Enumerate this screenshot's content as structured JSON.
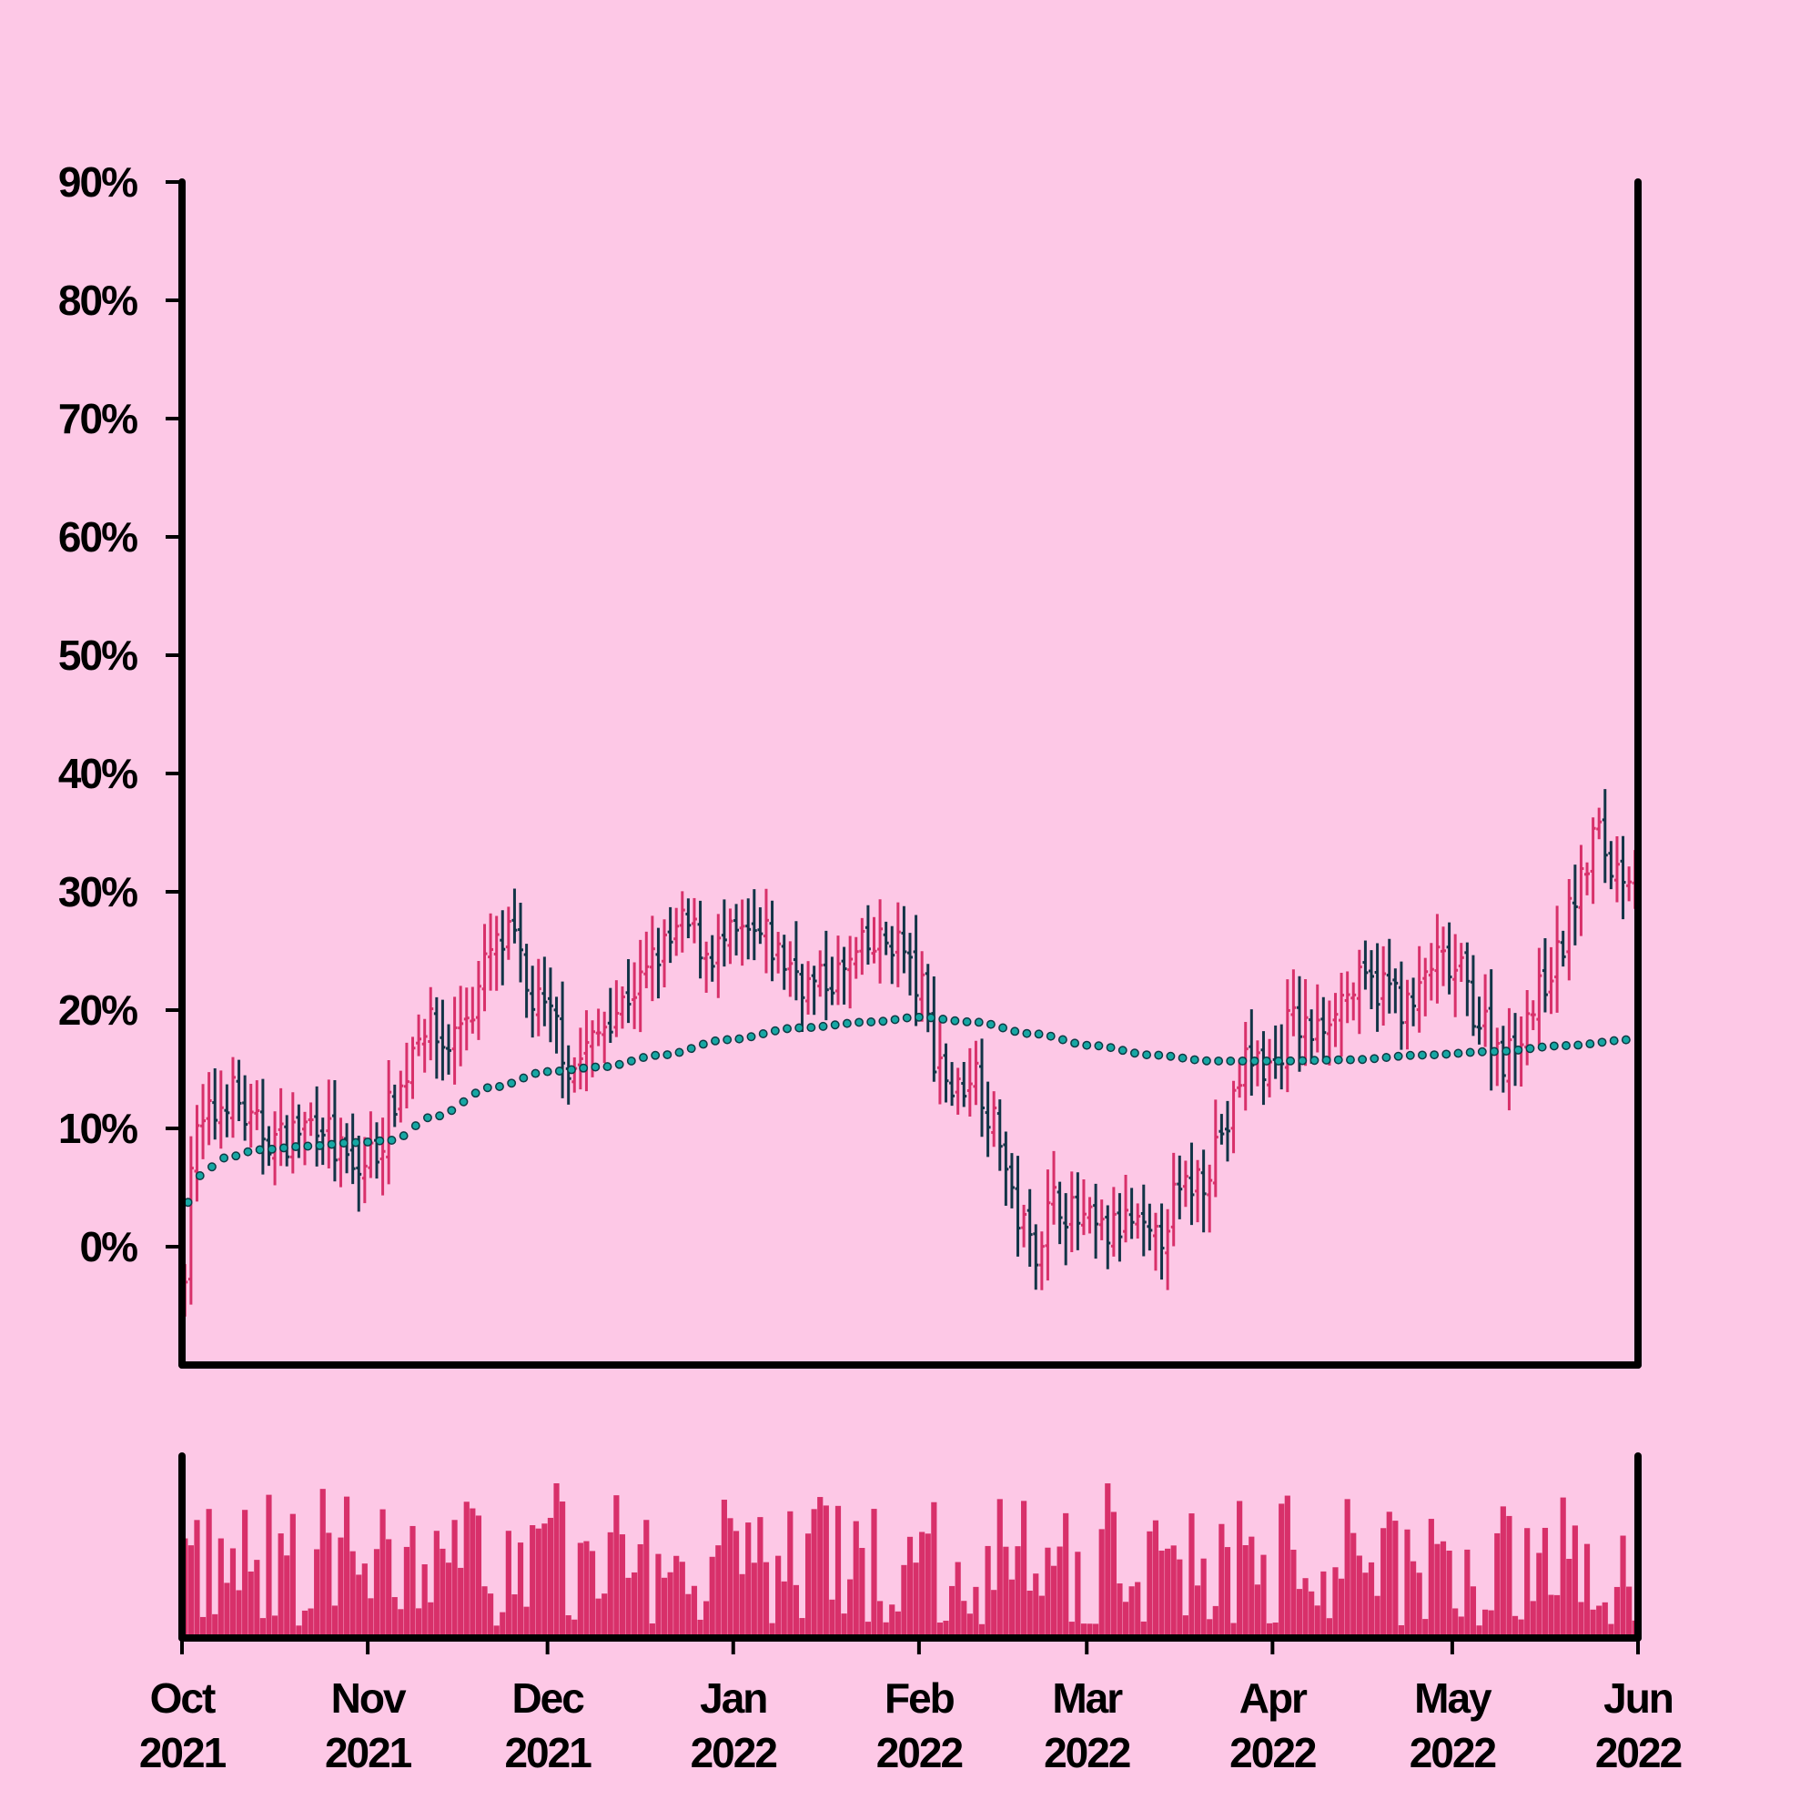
{
  "chart_data": {
    "type": "ohlc",
    "title": "",
    "xlabel": "",
    "ylabel": "",
    "colors": {
      "background": "#fdc8e6",
      "up": "#d8306a",
      "down": "#123447",
      "moving_average": "#17a7a4",
      "volume": "#d8306a",
      "axis": "#000000"
    },
    "price_panel": {
      "ylim": [
        -0.1,
        0.9
      ],
      "yticks": [
        0.0,
        0.1,
        0.2,
        0.3,
        0.4,
        0.5,
        0.6,
        0.7,
        0.8,
        0.9
      ],
      "ytick_labels": [
        "0%",
        "10%",
        "20%",
        "30%",
        "40%",
        "50%",
        "60%",
        "70%",
        "80%",
        "90%"
      ]
    },
    "x_axis": {
      "range": [
        "2021-10-01",
        "2022-06-01"
      ],
      "ticks": [
        {
          "date": "2021-10-01",
          "month": "Oct",
          "year": "2021"
        },
        {
          "date": "2021-11-01",
          "month": "Nov",
          "year": "2021"
        },
        {
          "date": "2021-12-01",
          "month": "Dec",
          "year": "2021"
        },
        {
          "date": "2022-01-01",
          "month": "Jan",
          "year": "2022"
        },
        {
          "date": "2022-02-01",
          "month": "Feb",
          "year": "2022"
        },
        {
          "date": "2022-03-01",
          "month": "Mar",
          "year": "2022"
        },
        {
          "date": "2022-04-01",
          "month": "Apr",
          "year": "2022"
        },
        {
          "date": "2022-05-01",
          "month": "May",
          "year": "2022"
        },
        {
          "date": "2022-06-01",
          "month": "Jun",
          "year": "2022"
        }
      ]
    },
    "close_anchors": [
      [
        "2021-10-01",
        -0.03
      ],
      [
        "2021-10-03",
        0.09
      ],
      [
        "2021-10-06",
        0.11
      ],
      [
        "2021-10-09",
        0.13
      ],
      [
        "2021-10-13",
        0.1
      ],
      [
        "2021-10-17",
        0.09
      ],
      [
        "2021-10-21",
        0.1
      ],
      [
        "2021-10-24",
        0.11
      ],
      [
        "2021-10-27",
        0.08
      ],
      [
        "2021-10-30",
        0.06
      ],
      [
        "2021-11-02",
        0.08
      ],
      [
        "2021-11-06",
        0.13
      ],
      [
        "2021-11-10",
        0.19
      ],
      [
        "2021-11-14",
        0.17
      ],
      [
        "2021-11-18",
        0.2
      ],
      [
        "2021-11-22",
        0.25
      ],
      [
        "2021-11-25",
        0.26
      ],
      [
        "2021-11-28",
        0.21
      ],
      [
        "2021-12-02",
        0.19
      ],
      [
        "2021-12-05",
        0.15
      ],
      [
        "2021-12-08",
        0.17
      ],
      [
        "2021-12-12",
        0.2
      ],
      [
        "2021-12-16",
        0.22
      ],
      [
        "2021-12-20",
        0.25
      ],
      [
        "2021-12-24",
        0.27
      ],
      [
        "2021-12-28",
        0.25
      ],
      [
        "2022-01-02",
        0.26
      ],
      [
        "2022-01-06",
        0.26
      ],
      [
        "2022-01-10",
        0.24
      ],
      [
        "2022-01-14",
        0.22
      ],
      [
        "2022-01-19",
        0.23
      ],
      [
        "2022-01-23",
        0.25
      ],
      [
        "2022-01-28",
        0.26
      ],
      [
        "2022-02-01",
        0.22
      ],
      [
        "2022-02-04",
        0.16
      ],
      [
        "2022-02-07",
        0.13
      ],
      [
        "2022-02-10",
        0.15
      ],
      [
        "2022-02-14",
        0.1
      ],
      [
        "2022-02-17",
        0.03
      ],
      [
        "2022-02-20",
        0.0
      ],
      [
        "2022-02-24",
        0.04
      ],
      [
        "2022-02-28",
        0.02
      ],
      [
        "2022-03-04",
        0.01
      ],
      [
        "2022-03-08",
        0.02
      ],
      [
        "2022-03-12",
        0.0
      ],
      [
        "2022-03-16",
        0.04
      ],
      [
        "2022-03-20",
        0.06
      ],
      [
        "2022-03-24",
        0.1
      ],
      [
        "2022-03-28",
        0.16
      ],
      [
        "2022-04-01",
        0.15
      ],
      [
        "2022-04-04",
        0.19
      ],
      [
        "2022-04-08",
        0.18
      ],
      [
        "2022-04-12",
        0.21
      ],
      [
        "2022-04-16",
        0.22
      ],
      [
        "2022-04-20",
        0.22
      ],
      [
        "2022-04-24",
        0.2
      ],
      [
        "2022-04-28",
        0.24
      ],
      [
        "2022-05-02",
        0.23
      ],
      [
        "2022-05-06",
        0.19
      ],
      [
        "2022-05-10",
        0.16
      ],
      [
        "2022-05-14",
        0.2
      ],
      [
        "2022-05-18",
        0.24
      ],
      [
        "2022-05-22",
        0.3
      ],
      [
        "2022-05-25",
        0.35
      ],
      [
        "2022-05-28",
        0.32
      ],
      [
        "2022-05-31",
        0.32
      ]
    ],
    "moving_average_anchors": [
      [
        "2021-10-01",
        0.03
      ],
      [
        "2021-10-04",
        0.06
      ],
      [
        "2021-10-08",
        0.075
      ],
      [
        "2021-10-14",
        0.082
      ],
      [
        "2021-10-22",
        0.085
      ],
      [
        "2021-10-30",
        0.088
      ],
      [
        "2021-11-05",
        0.09
      ],
      [
        "2021-11-12",
        0.11
      ],
      [
        "2021-11-22",
        0.135
      ],
      [
        "2021-12-01",
        0.148
      ],
      [
        "2021-12-10",
        0.152
      ],
      [
        "2021-12-20",
        0.162
      ],
      [
        "2021-12-31",
        0.175
      ],
      [
        "2022-01-12",
        0.185
      ],
      [
        "2022-01-24",
        0.19
      ],
      [
        "2022-02-01",
        0.194
      ],
      [
        "2022-02-10",
        0.19
      ],
      [
        "2022-02-20",
        0.18
      ],
      [
        "2022-03-02",
        0.17
      ],
      [
        "2022-03-12",
        0.162
      ],
      [
        "2022-03-22",
        0.157
      ],
      [
        "2022-04-02",
        0.157
      ],
      [
        "2022-04-14",
        0.158
      ],
      [
        "2022-04-26",
        0.162
      ],
      [
        "2022-05-08",
        0.165
      ],
      [
        "2022-05-20",
        0.17
      ],
      [
        "2022-05-31",
        0.175
      ]
    ]
  }
}
